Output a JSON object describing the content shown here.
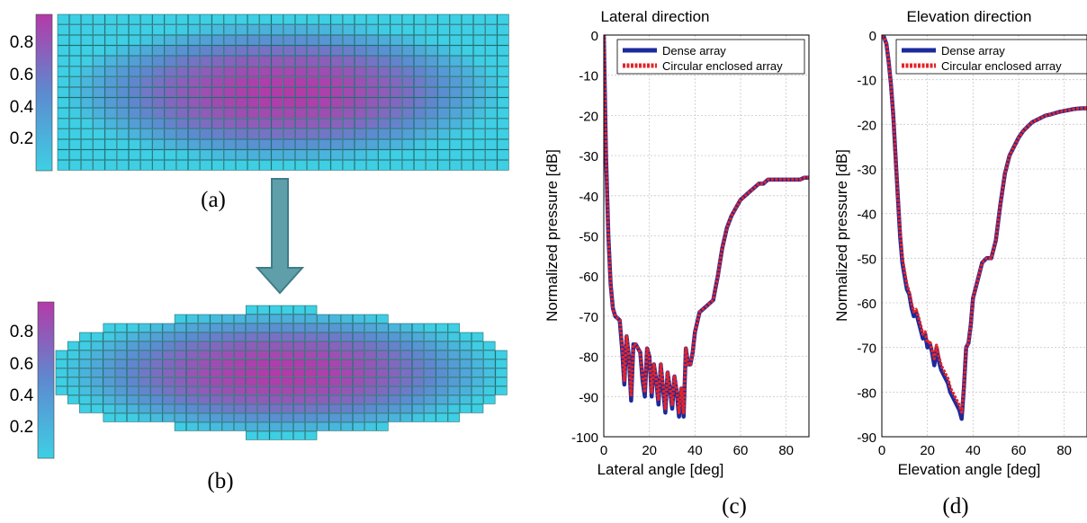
{
  "panels": {
    "a": {
      "label": "(a)",
      "colorbar_ticks": [
        "0.8",
        "0.6",
        "0.4",
        "0.2"
      ]
    },
    "b": {
      "label": "(b)",
      "colorbar_ticks": [
        "0.8",
        "0.6",
        "0.4",
        "0.2"
      ]
    },
    "c": {
      "label": "(c)"
    },
    "d": {
      "label": "(d)"
    }
  },
  "colors": {
    "cmap_low": "#3ecfe4",
    "cmap_high": "#b43aa8",
    "element_border": "#1e6e72",
    "arrow_fill": "#5f9faa",
    "arrow_stroke": "#3f7c88",
    "dense_series": "#1b2a9c",
    "circular_series": "#e2242a"
  },
  "apodization": {
    "description_shape_a": "rectangular dense array",
    "description_shape_b": "circular enclosed array",
    "cols": 38,
    "rows": 15,
    "value_range": [
      0,
      1
    ],
    "b_row_widths": [
      6,
      18,
      30,
      34,
      36,
      38,
      38,
      38,
      38,
      38,
      36,
      34,
      30,
      18,
      6
    ]
  },
  "chart_data": [
    {
      "type": "line",
      "title": "Lateral direction",
      "xlabel": "Lateral angle [deg]",
      "ylabel": "Normalized pressure [dB]",
      "xlim": [
        0,
        90
      ],
      "ylim": [
        -100,
        0
      ],
      "xticks": [
        "0",
        "20",
        "40",
        "60",
        "80"
      ],
      "yticks": [
        "0",
        "-10",
        "-20",
        "-30",
        "-40",
        "-50",
        "-60",
        "-70",
        "-80",
        "-90",
        "-100"
      ],
      "grid": true,
      "legend": "top-right",
      "series": [
        {
          "name": "Dense array",
          "x": [
            0,
            1,
            2,
            3,
            4,
            5,
            6,
            7,
            8,
            9,
            10,
            11,
            12,
            13,
            14,
            15,
            16,
            17,
            18,
            19,
            20,
            21,
            22,
            23,
            24,
            25,
            26,
            27,
            28,
            29,
            30,
            31,
            32,
            33,
            34,
            35,
            36,
            37,
            38,
            39,
            40,
            42,
            44,
            46,
            48,
            50,
            52,
            54,
            56,
            58,
            60,
            62,
            64,
            66,
            68,
            70,
            72,
            74,
            76,
            78,
            80,
            82,
            84,
            86,
            88,
            90
          ],
          "y": [
            0,
            -30,
            -50,
            -62,
            -68,
            -70,
            -70.5,
            -71,
            -78,
            -87,
            -75,
            -80,
            -91,
            -77,
            -77,
            -78,
            -79,
            -86,
            -90,
            -78,
            -80,
            -90,
            -82,
            -86,
            -92,
            -82,
            -88,
            -94,
            -84,
            -88,
            -93,
            -85,
            -89,
            -95,
            -88,
            -95,
            -78,
            -82,
            -82,
            -79,
            -74,
            -69,
            -68,
            -67,
            -66,
            -60,
            -53,
            -48,
            -45,
            -43,
            -41,
            -40,
            -39,
            -38,
            -37,
            -37,
            -36,
            -36,
            -36,
            -36,
            -36,
            -36,
            -36,
            -36,
            -35.5,
            -35.5
          ]
        },
        {
          "name": "Circular enclosed array",
          "x": [
            0,
            1,
            2,
            3,
            4,
            5,
            6,
            7,
            8,
            9,
            10,
            11,
            12,
            13,
            14,
            15,
            16,
            17,
            18,
            19,
            20,
            21,
            22,
            23,
            24,
            25,
            26,
            27,
            28,
            29,
            30,
            31,
            32,
            33,
            34,
            35,
            36,
            37,
            38,
            39,
            40,
            42,
            44,
            46,
            48,
            50,
            52,
            54,
            56,
            58,
            60,
            62,
            64,
            66,
            68,
            70,
            72,
            74,
            76,
            78,
            80,
            82,
            84,
            86,
            88,
            90
          ],
          "y": [
            0,
            -30,
            -50,
            -62,
            -68,
            -70,
            -70.5,
            -71,
            -77,
            -86,
            -75,
            -80,
            -90,
            -77,
            -77,
            -78,
            -79,
            -85,
            -89,
            -78,
            -80,
            -89,
            -82,
            -86,
            -91,
            -82,
            -87,
            -93,
            -84,
            -88,
            -92,
            -85,
            -88,
            -94,
            -88,
            -94,
            -78,
            -82,
            -82,
            -79,
            -74,
            -69,
            -68,
            -67,
            -66,
            -60,
            -53,
            -48,
            -45,
            -43,
            -41,
            -40,
            -39,
            -38,
            -37,
            -37,
            -36,
            -36,
            -36,
            -36,
            -36,
            -36,
            -36,
            -36,
            -35.5,
            -35.5
          ]
        }
      ]
    },
    {
      "type": "line",
      "title": "Elevation direction",
      "xlabel": "Elevation angle [deg]",
      "ylabel": "Normalized pressure [dB]",
      "xlim": [
        0,
        90
      ],
      "ylim": [
        -90,
        0
      ],
      "xticks": [
        "0",
        "20",
        "40",
        "60",
        "80"
      ],
      "yticks": [
        "0",
        "-10",
        "-20",
        "-30",
        "-40",
        "-50",
        "-60",
        "-70",
        "-80",
        "-90"
      ],
      "grid": true,
      "legend": "top-right",
      "series": [
        {
          "name": "Dense array",
          "x": [
            0,
            1,
            2,
            3,
            4,
            5,
            6,
            7,
            8,
            9,
            10,
            11,
            12,
            13,
            14,
            15,
            16,
            17,
            18,
            19,
            20,
            21,
            22,
            23,
            24,
            25,
            26,
            27,
            28,
            29,
            30,
            31,
            32,
            33,
            34,
            35,
            36,
            37,
            38,
            39,
            40,
            42,
            44,
            46,
            48,
            50,
            52,
            54,
            56,
            58,
            60,
            62,
            64,
            66,
            68,
            70,
            72,
            74,
            76,
            78,
            80,
            82,
            84,
            86,
            88,
            90
          ],
          "y": [
            0,
            -0.5,
            -2,
            -6,
            -11,
            -18,
            -27,
            -36,
            -45,
            -51,
            -54,
            -57,
            -58,
            -61,
            -63,
            -62,
            -64,
            -66,
            -68,
            -67,
            -70,
            -69,
            -71,
            -74,
            -70,
            -73,
            -75,
            -76,
            -77,
            -78,
            -80,
            -81,
            -82,
            -83,
            -84,
            -86,
            -79,
            -70,
            -69,
            -65,
            -59,
            -55,
            -51,
            -50,
            -50,
            -46,
            -38,
            -31,
            -27,
            -25,
            -23,
            -21.5,
            -20.5,
            -19.5,
            -19,
            -18.5,
            -18,
            -17.8,
            -17.5,
            -17.2,
            -17,
            -16.8,
            -16.6,
            -16.5,
            -16.4,
            -16.4
          ]
        },
        {
          "name": "Circular enclosed array",
          "x": [
            0,
            1,
            2,
            3,
            4,
            5,
            6,
            7,
            8,
            9,
            10,
            11,
            12,
            13,
            14,
            15,
            16,
            17,
            18,
            19,
            20,
            21,
            22,
            23,
            24,
            25,
            26,
            27,
            28,
            29,
            30,
            31,
            32,
            33,
            34,
            35,
            36,
            37,
            38,
            39,
            40,
            42,
            44,
            46,
            48,
            50,
            52,
            54,
            56,
            58,
            60,
            62,
            64,
            66,
            68,
            70,
            72,
            74,
            76,
            78,
            80,
            82,
            84,
            86,
            88,
            90
          ],
          "y": [
            0,
            -0.5,
            -2,
            -6,
            -11,
            -18,
            -27,
            -36,
            -44,
            -50,
            -53,
            -56,
            -57.5,
            -60,
            -62,
            -61.5,
            -63,
            -65,
            -67,
            -66.5,
            -69,
            -68.5,
            -70.5,
            -72.5,
            -69.5,
            -72,
            -74,
            -75,
            -76,
            -77,
            -79,
            -80,
            -81,
            -82,
            -83,
            -84.5,
            -79,
            -70,
            -69,
            -65,
            -59,
            -55,
            -51,
            -50,
            -50,
            -46,
            -38,
            -31,
            -27,
            -25,
            -23,
            -21.5,
            -20.5,
            -19.5,
            -19,
            -18.5,
            -18,
            -17.8,
            -17.5,
            -17.2,
            -17,
            -16.8,
            -16.6,
            -16.5,
            -16.4,
            -16.4
          ]
        }
      ]
    }
  ]
}
